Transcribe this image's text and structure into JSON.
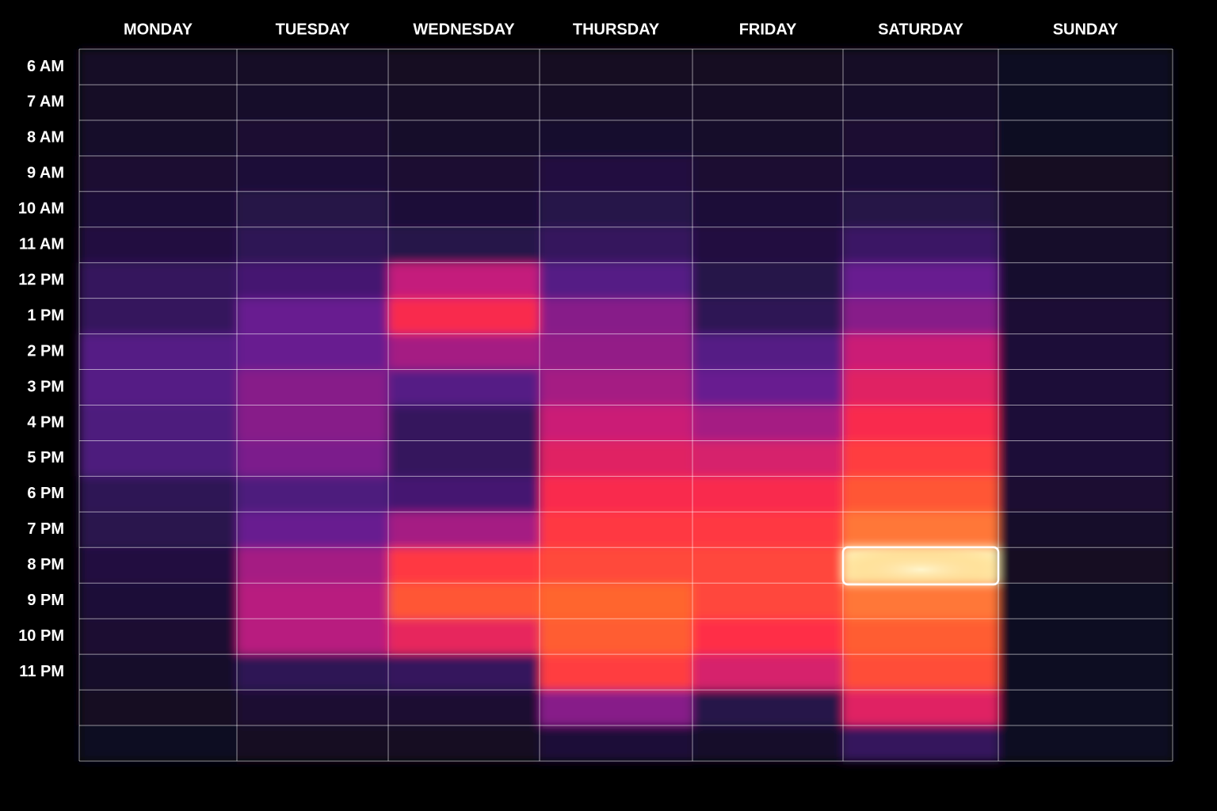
{
  "chart_data": {
    "type": "heatmap",
    "categories": [
      "6 AM",
      "7 AM",
      "8 AM",
      "9 AM",
      "10 AM",
      "11 AM",
      "12 PM",
      "1 PM",
      "2 PM",
      "3 PM",
      "4 PM",
      "5 PM",
      "6 PM",
      "7 PM",
      "8 PM",
      "9 PM",
      "10 PM",
      "11 PM",
      null,
      null
    ],
    "series": [
      {
        "name": "MONDAY",
        "values": [
          5,
          5,
          6,
          8,
          10,
          12,
          20,
          20,
          30,
          30,
          28,
          28,
          18,
          16,
          12,
          10,
          8,
          6,
          4,
          3
        ]
      },
      {
        "name": "TUESDAY",
        "values": [
          5,
          6,
          8,
          10,
          14,
          18,
          25,
          35,
          35,
          40,
          40,
          38,
          28,
          35,
          45,
          48,
          48,
          18,
          8,
          4
        ]
      },
      {
        "name": "WEDNESDAY",
        "values": [
          4,
          5,
          6,
          8,
          10,
          15,
          50,
          65,
          45,
          30,
          20,
          20,
          25,
          45,
          70,
          78,
          60,
          20,
          8,
          4
        ]
      },
      {
        "name": "THURSDAY",
        "values": [
          4,
          5,
          7,
          12,
          15,
          20,
          30,
          40,
          42,
          45,
          52,
          58,
          65,
          70,
          75,
          82,
          80,
          72,
          40,
          10
        ]
      },
      {
        "name": "FRIDAY",
        "values": [
          4,
          5,
          6,
          8,
          10,
          12,
          15,
          18,
          30,
          35,
          45,
          55,
          65,
          70,
          74,
          74,
          68,
          55,
          15,
          6
        ]
      },
      {
        "name": "SATURDAY",
        "values": [
          5,
          6,
          8,
          10,
          14,
          22,
          35,
          40,
          52,
          58,
          65,
          72,
          78,
          85,
          100,
          85,
          80,
          76,
          58,
          20
        ]
      },
      {
        "name": "SUNDAY",
        "values": [
          3,
          3,
          3,
          4,
          5,
          6,
          7,
          9,
          10,
          10,
          10,
          10,
          8,
          6,
          4,
          3,
          3,
          3,
          3,
          3
        ]
      }
    ],
    "zlim": [
      0,
      100
    ],
    "colorscale": [
      "#0b0916",
      "#2a1450",
      "#5e1e92",
      "#c41e7c",
      "#ff2a48",
      "#ff6a2c",
      "#ffeeb0"
    ]
  }
}
